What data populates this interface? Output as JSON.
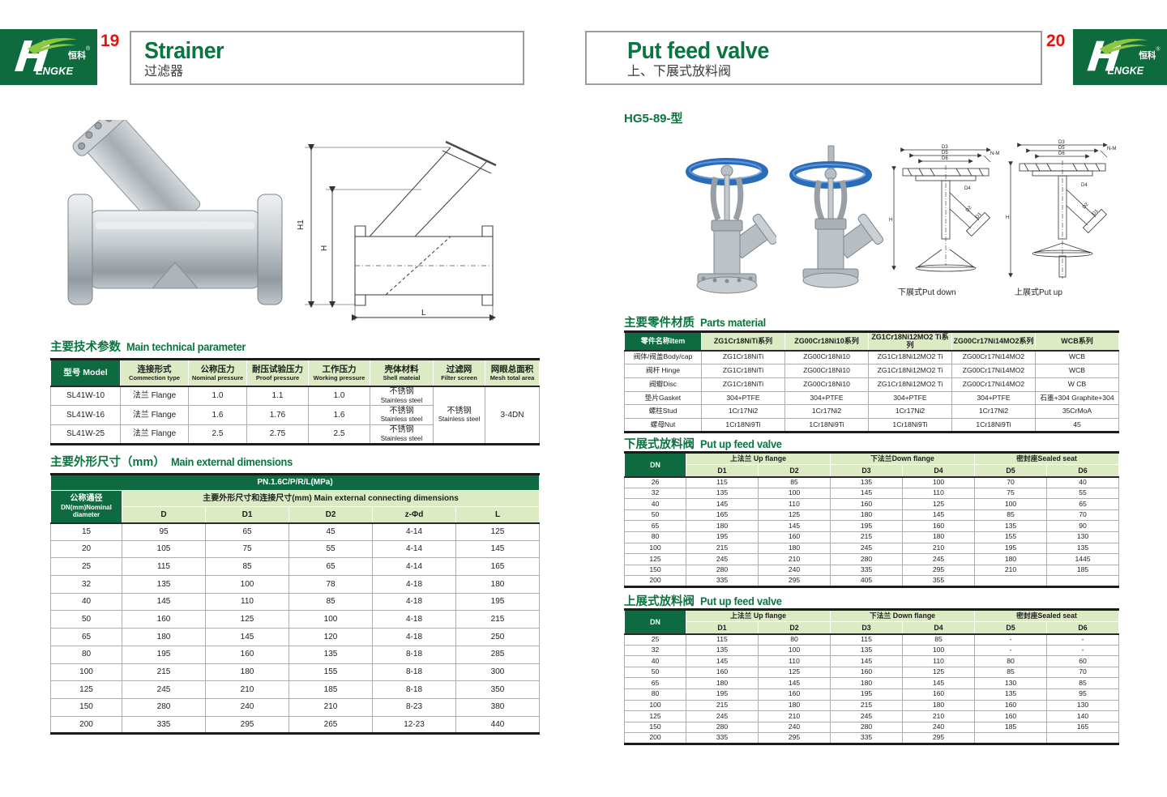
{
  "brand": {
    "logo_en": "ENGKE",
    "logo_h": "H",
    "logo_zh": "恒科",
    "reg": "®"
  },
  "header": {
    "left": {
      "page_no": "19",
      "title_en": "Strainer",
      "title_zh": "过滤器"
    },
    "right": {
      "page_no": "20",
      "title_en": "Put feed valve",
      "title_zh": "上、下展式放料阀"
    }
  },
  "left_page": {
    "sec_tech": {
      "zh": "主要技术参数",
      "en": "Main technical parameter"
    },
    "sec_dims": {
      "zh": "主要外形尺寸（mm）",
      "en": "Main external dimensions"
    },
    "drawing_labels": {
      "h1": "H1",
      "h": "H",
      "l": "L"
    },
    "tables": {
      "tech": {
        "head": [
          [
            {
              "t": "型号 Model",
              "cls": "dk"
            },
            {
              "t": "连接形式",
              "sub": "Commection type",
              "cls": "lt"
            },
            {
              "t": "公称压力",
              "sub": "Nominal pressure",
              "cls": "lt"
            },
            {
              "t": "耐压试验压力",
              "sub": "Proof pressure",
              "cls": "lt"
            },
            {
              "t": "工作压力",
              "sub": "Working pressure",
              "cls": "lt"
            },
            {
              "t": "壳体材料",
              "sub": "Shell mateial",
              "cls": "lt"
            },
            {
              "t": "过滤网",
              "sub": "Filter screen",
              "cls": "lt"
            },
            {
              "t": "网眼总面积",
              "sub": "Mesh total area",
              "cls": "lt"
            }
          ]
        ],
        "rows": [
          [
            "SL41W-10",
            "法兰 Flange",
            "1.0",
            "1.1",
            "1.0",
            {
              "t": "不锈钢",
              "sub": "Stainless steel"
            },
            {
              "t": "不锈钢",
              "sub": "Stainless steel",
              "rowspan": 3
            },
            {
              "t": "3-4DN",
              "rowspan": 3
            }
          ],
          [
            "SL41W-16",
            "法兰 Flange",
            "1.6",
            "1.76",
            "1.6",
            {
              "t": "不锈钢",
              "sub": "Stainless steel"
            }
          ],
          [
            "SL41W-25",
            "法兰 Flange",
            "2.5",
            "2.75",
            "2.5",
            {
              "t": "不锈钢",
              "sub": "Stainless steel"
            }
          ]
        ]
      },
      "dims": {
        "head": [
          [
            {
              "t": "PN.1.6C/P/R/L(MPa)",
              "cls": "dk",
              "colspan": 6
            }
          ],
          [
            {
              "t": "公称通径",
              "sub": "DN(mm)Nominal\ndiameter",
              "cls": "dk",
              "rowspan": 2
            },
            {
              "t": "主要外形尺寸和连接尺寸(mm) Main external connecting dimensions",
              "cls": "lt",
              "colspan": 5
            }
          ],
          [
            {
              "t": "D",
              "cls": "lt"
            },
            {
              "t": "D1",
              "cls": "lt"
            },
            {
              "t": "D2",
              "cls": "lt"
            },
            {
              "t": "z-Φd",
              "cls": "lt"
            },
            {
              "t": "L",
              "cls": "lt"
            }
          ]
        ],
        "rows": [
          [
            "15",
            "95",
            "65",
            "45",
            "4-14",
            "125"
          ],
          [
            "20",
            "105",
            "75",
            "55",
            "4-14",
            "145"
          ],
          [
            "25",
            "115",
            "85",
            "65",
            "4-14",
            "165"
          ],
          [
            "32",
            "135",
            "100",
            "78",
            "4-18",
            "180"
          ],
          [
            "40",
            "145",
            "110",
            "85",
            "4-18",
            "195"
          ],
          [
            "50",
            "160",
            "125",
            "100",
            "4-18",
            "215"
          ],
          [
            "65",
            "180",
            "145",
            "120",
            "4-18",
            "250"
          ],
          [
            "80",
            "195",
            "160",
            "135",
            "8-18",
            "285"
          ],
          [
            "100",
            "215",
            "180",
            "155",
            "8-18",
            "300"
          ],
          [
            "125",
            "245",
            "210",
            "185",
            "8-18",
            "350"
          ],
          [
            "150",
            "280",
            "240",
            "210",
            "8-23",
            "380"
          ],
          [
            "200",
            "335",
            "295",
            "265",
            "12-23",
            "440"
          ]
        ]
      }
    }
  },
  "right_page": {
    "model": "HG5-89-型",
    "captions": {
      "down": "下展式Put down",
      "up": "上展式Put up"
    },
    "drawing_labels": {
      "d3": "D3",
      "d5": "D5",
      "d6": "D6",
      "nm": "N-M",
      "d4": "D4",
      "h": "H",
      "d1": "D1",
      "d2": "D2"
    },
    "sec_parts": {
      "zh": "主要零件材质",
      "en": "Parts material"
    },
    "sec_down": {
      "zh": "下展式放料阀",
      "en": "Put up feed valve"
    },
    "sec_up": {
      "zh": "上展式放料阀",
      "en": "Put up feed valve"
    },
    "tables": {
      "parts": {
        "head": [
          [
            {
              "t": "零件名称Item",
              "cls": "dk"
            },
            {
              "t": "ZG1Cr18NiTi系列",
              "cls": "lt"
            },
            {
              "t": "ZG00Cr18Ni10系列",
              "cls": "lt"
            },
            {
              "t": "ZG1Cr18Ni12MO2 Ti系列",
              "cls": "lt"
            },
            {
              "t": "ZG00Cr17Ni14MO2系列",
              "cls": "lt"
            },
            {
              "t": "WCB系列",
              "cls": "lt"
            }
          ]
        ],
        "rows": [
          [
            "阀体/阀盖Body/cap",
            "ZG1Cr18NiTi",
            "ZG00Cr18Ni10",
            "ZG1Cr18Ni12MO2 Ti",
            "ZG00Cr17Ni14MO2",
            "WCB"
          ],
          [
            "阀杆 Hinge",
            "ZG1Cr18NiTi",
            "ZG00Cr18Ni10",
            "ZG1Cr18Ni12MO2 Ti",
            "ZG00Cr17Ni14MO2",
            "WCB"
          ],
          [
            "阀瓣Disc",
            "ZG1Cr18NiTi",
            "ZG00Cr18Ni10",
            "ZG1Cr18Ni12MO2 Ti",
            "ZG00Cr17Ni14MO2",
            "W CB"
          ],
          [
            "垫片Gasket",
            "304+PTFE",
            "304+PTFE",
            "304+PTFE",
            "304+PTFE",
            "石墨+304 Graphite+304"
          ],
          [
            "螺柱Stud",
            "1Cr17Ni2",
            "1Cr17Ni2",
            "1Cr17Ni2",
            "1Cr17Ni2",
            "35CrMoA"
          ],
          [
            "螺母Nut",
            "1Cr18Ni9Ti",
            "1Cr18Ni9Ti",
            "1Cr18Ni9Ti",
            "1Cr18Ni9Ti",
            "45"
          ]
        ]
      },
      "down": {
        "head": [
          [
            {
              "t": "DN",
              "cls": "dk",
              "rowspan": 2
            },
            {
              "t": "上法兰 Up flange",
              "cls": "lt",
              "colspan": 2
            },
            {
              "t": "下法兰Down flange",
              "cls": "lt",
              "colspan": 2
            },
            {
              "t": "密封座Sealed seat",
              "cls": "lt",
              "colspan": 2
            }
          ],
          [
            {
              "t": "D1",
              "cls": "lt"
            },
            {
              "t": "D2",
              "cls": "lt"
            },
            {
              "t": "D3",
              "cls": "lt"
            },
            {
              "t": "D4",
              "cls": "lt"
            },
            {
              "t": "D5",
              "cls": "lt"
            },
            {
              "t": "D6",
              "cls": "lt"
            }
          ]
        ],
        "rows": [
          [
            "26",
            "115",
            "85",
            "135",
            "100",
            "70",
            "40"
          ],
          [
            "32",
            "135",
            "100",
            "145",
            "110",
            "75",
            "55"
          ],
          [
            "40",
            "145",
            "110",
            "160",
            "125",
            "100",
            "65"
          ],
          [
            "50",
            "165",
            "125",
            "180",
            "145",
            "85",
            "70"
          ],
          [
            "65",
            "180",
            "145",
            "195",
            "160",
            "135",
            "90"
          ],
          [
            "80",
            "195",
            "160",
            "215",
            "180",
            "155",
            "130"
          ],
          [
            "100",
            "215",
            "180",
            "245",
            "210",
            "195",
            "135"
          ],
          [
            "125",
            "245",
            "210",
            "280",
            "245",
            "180",
            "1445"
          ],
          [
            "150",
            "280",
            "240",
            "335",
            "295",
            "210",
            "185"
          ],
          [
            "200",
            "335",
            "295",
            "405",
            "355",
            "",
            ""
          ]
        ]
      },
      "up": {
        "head": [
          [
            {
              "t": "DN",
              "cls": "dk",
              "rowspan": 2
            },
            {
              "t": "上法兰 Up flange",
              "cls": "lt",
              "colspan": 2
            },
            {
              "t": "下法兰 Down flange",
              "cls": "lt",
              "colspan": 2
            },
            {
              "t": "密封座Sealed seat",
              "cls": "lt",
              "colspan": 2
            }
          ],
          [
            {
              "t": "D1",
              "cls": "lt"
            },
            {
              "t": "D2",
              "cls": "lt"
            },
            {
              "t": "D3",
              "cls": "lt"
            },
            {
              "t": "D4",
              "cls": "lt"
            },
            {
              "t": "D5",
              "cls": "lt"
            },
            {
              "t": "D6",
              "cls": "lt"
            }
          ]
        ],
        "rows": [
          [
            "25",
            "115",
            "80",
            "115",
            "85",
            "-",
            "-"
          ],
          [
            "32",
            "135",
            "100",
            "135",
            "100",
            "-",
            "-"
          ],
          [
            "40",
            "145",
            "110",
            "145",
            "110",
            "80",
            "60"
          ],
          [
            "50",
            "160",
            "125",
            "160",
            "125",
            "85",
            "70"
          ],
          [
            "65",
            "180",
            "145",
            "180",
            "145",
            "130",
            "85"
          ],
          [
            "80",
            "195",
            "160",
            "195",
            "160",
            "135",
            "95"
          ],
          [
            "100",
            "215",
            "180",
            "215",
            "180",
            "160",
            "130"
          ],
          [
            "125",
            "245",
            "210",
            "245",
            "210",
            "160",
            "140"
          ],
          [
            "150",
            "280",
            "240",
            "280",
            "240",
            "185",
            "165"
          ],
          [
            "200",
            "335",
            "295",
            "335",
            "295",
            "",
            ""
          ]
        ]
      }
    }
  },
  "colors": {
    "green_dark": "#0e6b3e",
    "green_light": "#dcebc4",
    "title_green": "#0b7540",
    "page_red": "#e8120c"
  }
}
